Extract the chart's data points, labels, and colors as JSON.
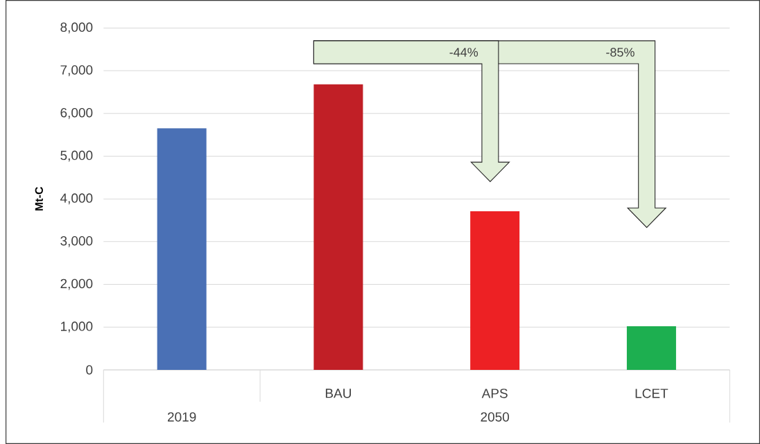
{
  "chart_data": {
    "type": "bar",
    "categories": [
      null,
      "BAU",
      "APS",
      "LCET"
    ],
    "values": [
      5650,
      6680,
      3710,
      1020
    ],
    "colors": [
      "#4a70b5",
      "#c11f26",
      "#ed2124",
      "#1daf50"
    ],
    "ylabel": "Mt-C",
    "ylim": [
      0,
      8000
    ],
    "yticks": [
      0,
      {
        "value": 1000,
        "label": "1,000"
      },
      {
        "value": 2000,
        "label": "2,000"
      },
      {
        "value": 3000,
        "label": "3,000"
      },
      {
        "value": 4000,
        "label": "4,000"
      },
      {
        "value": 5000,
        "label": "5,000"
      },
      {
        "value": 6000,
        "label": "6,000"
      },
      {
        "value": 7000,
        "label": "7,000"
      },
      {
        "value": 8000,
        "label": "8,000"
      }
    ],
    "grid": "y",
    "annotations": [
      "2019",
      "2050",
      "-44%",
      "-85%"
    ]
  }
}
